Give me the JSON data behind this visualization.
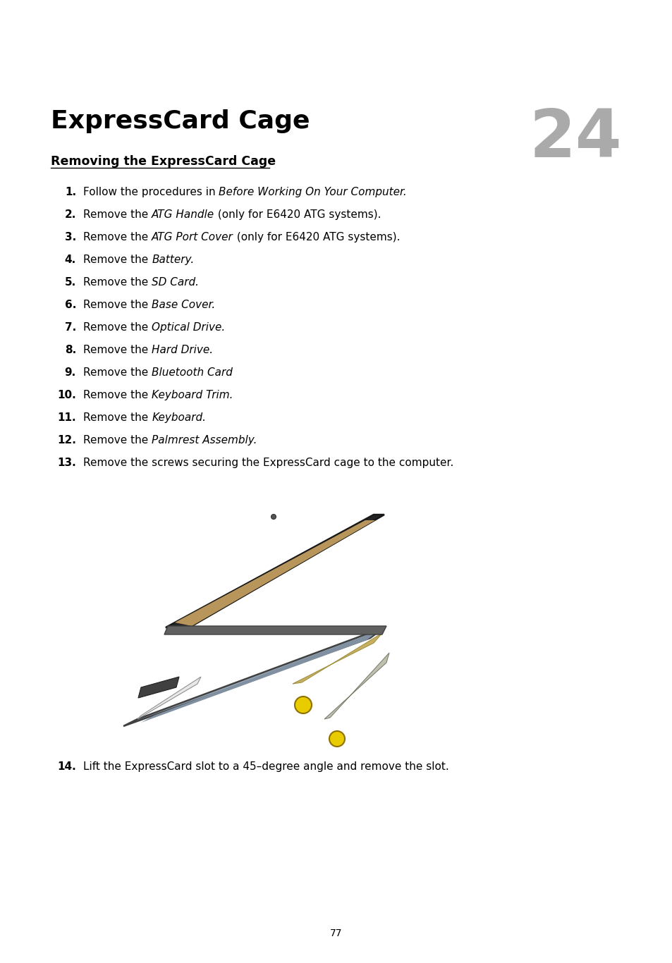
{
  "title": "ExpressCard Cage",
  "chapter_num": "24",
  "section_title": "Removing the ExpressCard Cage",
  "steps": [
    {
      "num": "1.",
      "parts": [
        [
          "Follow the procedures in ",
          false
        ],
        [
          "Before Working On Your Computer.",
          true
        ]
      ]
    },
    {
      "num": "2.",
      "parts": [
        [
          "Remove the ",
          false
        ],
        [
          "ATG Handle",
          true
        ],
        [
          " (only for E6420 ATG systems).",
          false
        ]
      ]
    },
    {
      "num": "3.",
      "parts": [
        [
          "Remove the ",
          false
        ],
        [
          "ATG Port Cover",
          true
        ],
        [
          " (only for E6420 ATG systems).",
          false
        ]
      ]
    },
    {
      "num": "4.",
      "parts": [
        [
          "Remove the ",
          false
        ],
        [
          "Battery.",
          true
        ]
      ]
    },
    {
      "num": "5.",
      "parts": [
        [
          "Remove the ",
          false
        ],
        [
          "SD Card.",
          true
        ]
      ]
    },
    {
      "num": "6.",
      "parts": [
        [
          "Remove the ",
          false
        ],
        [
          "Base Cover.",
          true
        ]
      ]
    },
    {
      "num": "7.",
      "parts": [
        [
          "Remove the ",
          false
        ],
        [
          "Optical Drive.",
          true
        ]
      ]
    },
    {
      "num": "8.",
      "parts": [
        [
          "Remove the ",
          false
        ],
        [
          "Hard Drive.",
          true
        ]
      ]
    },
    {
      "num": "9.",
      "parts": [
        [
          "Remove the ",
          false
        ],
        [
          "Bluetooth Card",
          true
        ]
      ]
    },
    {
      "num": "10.",
      "parts": [
        [
          "Remove the ",
          false
        ],
        [
          "Keyboard Trim.",
          true
        ]
      ]
    },
    {
      "num": "11.",
      "parts": [
        [
          "Remove the ",
          false
        ],
        [
          "Keyboard.",
          true
        ]
      ]
    },
    {
      "num": "12.",
      "parts": [
        [
          "Remove the ",
          false
        ],
        [
          "Palmrest Assembly.",
          true
        ]
      ]
    },
    {
      "num": "13.",
      "parts": [
        [
          "Remove the screws securing the ExpressCard cage to the computer.",
          false
        ]
      ]
    }
  ],
  "step14_num": "14.",
  "step14_text": "Lift the ExpressCard slot to a 45–degree angle and remove the slot.",
  "page_num": "77",
  "bg_color": "#ffffff",
  "text_color": "#000000",
  "chapter_num_color": "#aaaaaa",
  "title_fontsize": 26,
  "chapter_num_fontsize": 68,
  "section_fontsize": 12.5,
  "step_fontsize": 11,
  "page_fontsize": 10
}
